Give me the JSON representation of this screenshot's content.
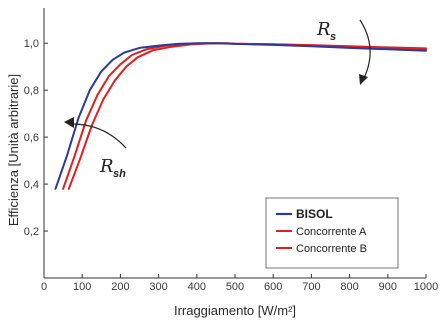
{
  "chart_data": {
    "type": "line",
    "xlabel": "Irraggiamento [W/m²]",
    "ylabel": "Efficienza [Unità arbitrarie]",
    "xlim": [
      0,
      1000
    ],
    "ylim": [
      0,
      1.15
    ],
    "x_ticks": [
      "0",
      "100",
      "200",
      "300",
      "400",
      "500",
      "600",
      "700",
      "800",
      "900",
      "1000"
    ],
    "y_ticks": [
      "0,2",
      "0,4",
      "0,6",
      "0,8",
      "1,0"
    ],
    "grid": false,
    "legend_position": "bottom-right",
    "series": [
      {
        "name": "BISOL",
        "color": "#2a3b9c",
        "x": [
          30,
          60,
          90,
          120,
          150,
          180,
          210,
          250,
          300,
          350,
          400,
          450,
          500,
          600,
          700,
          800,
          900,
          1000
        ],
        "y": [
          0.38,
          0.52,
          0.68,
          0.8,
          0.88,
          0.93,
          0.96,
          0.98,
          0.99,
          0.997,
          1.0,
          1.0,
          0.997,
          0.993,
          0.987,
          0.98,
          0.974,
          0.968
        ]
      },
      {
        "name": "Concorrente A",
        "color": "#e02020",
        "x": [
          50,
          80,
          110,
          140,
          170,
          200,
          230,
          270,
          320,
          370,
          420,
          470,
          500,
          600,
          700,
          800,
          900,
          1000
        ],
        "y": [
          0.38,
          0.52,
          0.67,
          0.78,
          0.86,
          0.91,
          0.95,
          0.975,
          0.99,
          0.997,
          1.0,
          1.0,
          0.998,
          0.995,
          0.99,
          0.984,
          0.978,
          0.973
        ]
      },
      {
        "name": "Concorrente B",
        "color": "#e02020",
        "x": [
          65,
          95,
          125,
          155,
          185,
          215,
          245,
          285,
          335,
          385,
          430,
          480,
          500,
          600,
          700,
          800,
          900,
          1000
        ],
        "y": [
          0.38,
          0.51,
          0.65,
          0.76,
          0.84,
          0.9,
          0.94,
          0.97,
          0.985,
          0.995,
          0.999,
          1.0,
          0.998,
          0.996,
          0.992,
          0.987,
          0.982,
          0.978
        ]
      }
    ],
    "annotations": [
      {
        "symbol": "R",
        "subscript": "s"
      },
      {
        "symbol": "R",
        "subscript": "sh"
      }
    ]
  }
}
